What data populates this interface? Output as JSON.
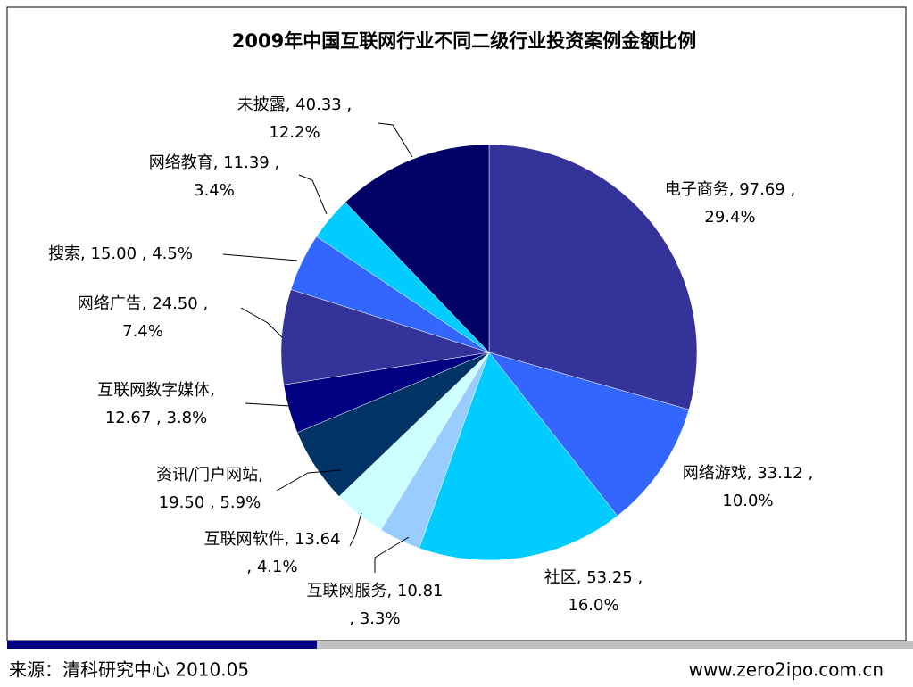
{
  "chart_data": {
    "type": "pie",
    "title": "2009年中国互联网行业不同二级行业投资案例金额比例",
    "values": [
      97.69,
      33.12,
      53.25,
      10.81,
      13.64,
      19.5,
      12.67,
      24.5,
      15.0,
      11.39,
      40.33
    ],
    "value_labels": [
      [
        "电子商务, 97.69 ,",
        "29.4%"
      ],
      [
        "网络游戏, 33.12 ,",
        "10.0%"
      ],
      [
        "社区, 53.25 ,",
        "16.0%"
      ],
      [
        "互联网服务, 10.81",
        ", 3.3%"
      ],
      [
        "互联网软件, 13.64",
        ", 4.1%"
      ],
      [
        "资讯/门户网站,",
        "19.50 , 5.9%"
      ],
      [
        "互联网数字媒体,",
        "12.67 , 3.8%"
      ],
      [
        "网络广告, 24.50 ,",
        "7.4%"
      ],
      [
        "搜索, 15.00 , 4.5%"
      ],
      [
        "网络教育, 11.39 ,",
        "3.4%"
      ],
      [
        "未披露, 40.33 ,",
        "12.2%"
      ]
    ],
    "colors": [
      "#333399",
      "#3366ff",
      "#00ccff",
      "#99ccff",
      "#ccffff",
      "#003366",
      "#000080",
      "#333399",
      "#3366ff",
      "#00ccff",
      "#000066"
    ],
    "source": "来源：清科研究中心 2010.05",
    "website": "www.zero2ipo.com.cn"
  }
}
